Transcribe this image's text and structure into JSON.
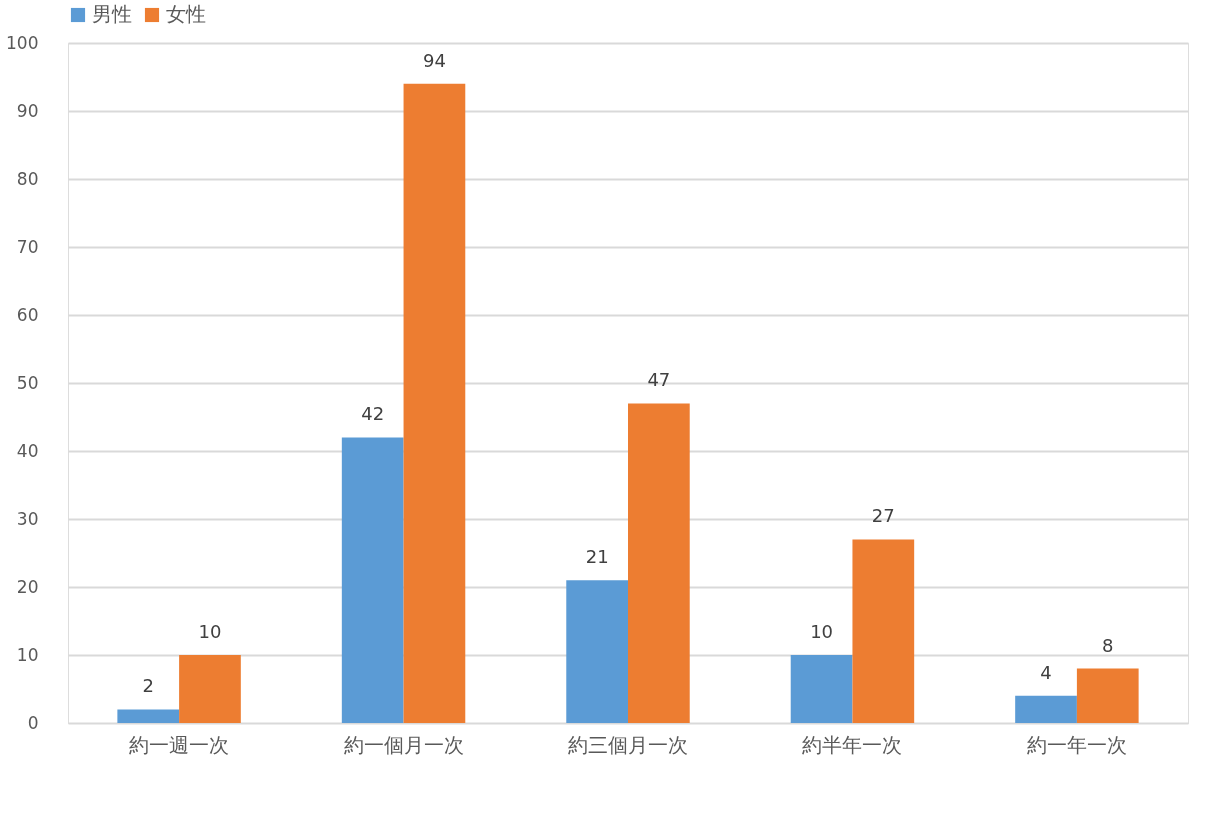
{
  "chart_data": {
    "type": "bar",
    "categories": [
      "約一週一次",
      "約一個月一次",
      "約三個月一次",
      "約半年一次",
      "約一年一次"
    ],
    "series": [
      {
        "name": "男性",
        "color": "#5b9bd5",
        "values": [
          2,
          42,
          21,
          10,
          4
        ]
      },
      {
        "name": "女性",
        "color": "#ed7d31",
        "values": [
          10,
          94,
          47,
          27,
          8
        ]
      }
    ],
    "ylim": [
      0,
      100
    ],
    "yticks": [
      0,
      10,
      20,
      30,
      40,
      50,
      60,
      70,
      80,
      90,
      100
    ],
    "grid": "y",
    "legend": "top",
    "data_labels": true
  }
}
